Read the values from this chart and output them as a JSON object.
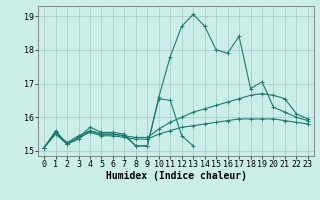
{
  "bg_color": "#cceee8",
  "grid_color": "#aacccc",
  "line_color": "#1a7a6e",
  "xlabel": "Humidex (Indice chaleur)",
  "xlabel_fontsize": 7,
  "tick_fontsize": 6,
  "ylim": [
    14.85,
    19.3
  ],
  "xlim": [
    -0.5,
    23.5
  ],
  "yticks": [
    15,
    16,
    17,
    18,
    19
  ],
  "xticks": [
    0,
    1,
    2,
    3,
    4,
    5,
    6,
    7,
    8,
    9,
    10,
    11,
    12,
    13,
    14,
    15,
    16,
    17,
    18,
    19,
    20,
    21,
    22,
    23
  ],
  "series": [
    {
      "x": [
        0,
        1,
        2,
        3,
        4,
        5,
        6,
        7,
        8,
        9,
        10,
        11,
        12,
        13,
        14,
        15,
        16,
        17,
        18,
        19,
        20,
        21,
        22,
        23
      ],
      "y": [
        15.1,
        15.6,
        15.2,
        15.4,
        15.7,
        15.55,
        15.55,
        15.5,
        15.15,
        15.15,
        16.6,
        17.8,
        18.7,
        19.05,
        18.7,
        18.0,
        17.9,
        18.4,
        16.85,
        17.05,
        16.3,
        16.15,
        16.0,
        15.9
      ]
    },
    {
      "x": [
        0,
        1,
        2,
        3,
        4,
        5,
        6,
        7,
        8,
        9,
        10,
        11,
        12,
        13,
        14,
        15,
        16,
        17,
        18,
        19,
        20,
        21,
        22,
        23
      ],
      "y": [
        15.1,
        15.55,
        15.25,
        15.45,
        15.6,
        15.5,
        15.5,
        15.45,
        15.4,
        15.4,
        15.65,
        15.85,
        16.0,
        16.15,
        16.25,
        16.35,
        16.45,
        16.55,
        16.65,
        16.7,
        16.65,
        16.55,
        16.1,
        15.95
      ]
    },
    {
      "x": [
        0,
        1,
        2,
        3,
        4,
        5,
        6,
        7,
        8,
        9,
        10,
        11,
        12,
        13,
        14,
        15,
        16,
        17,
        18,
        19,
        20,
        21,
        22,
        23
      ],
      "y": [
        15.1,
        15.5,
        15.2,
        15.4,
        15.55,
        15.45,
        15.45,
        15.4,
        15.35,
        15.35,
        15.5,
        15.6,
        15.7,
        15.75,
        15.8,
        15.85,
        15.9,
        15.95,
        15.95,
        15.95,
        15.95,
        15.9,
        15.85,
        15.8
      ]
    },
    {
      "x": [
        0,
        1,
        2,
        3,
        4,
        5,
        6,
        7,
        8,
        9,
        10,
        11,
        12,
        13
      ],
      "y": [
        15.1,
        15.55,
        15.2,
        15.35,
        15.6,
        15.5,
        15.5,
        15.45,
        15.15,
        15.15,
        16.55,
        16.5,
        15.45,
        15.15
      ]
    }
  ]
}
